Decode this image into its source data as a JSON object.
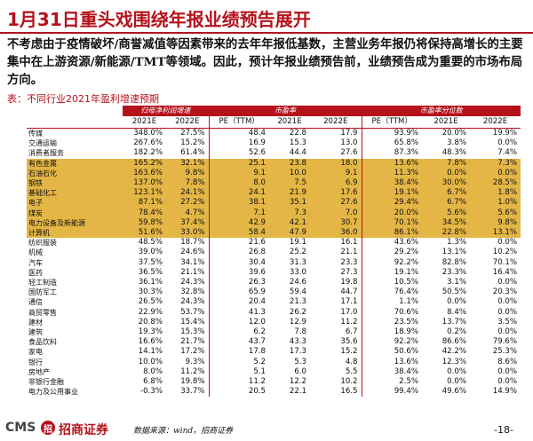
{
  "title": "1月31日重头戏围绕年报业绩预告展开",
  "paragraph": "不考虑由于疫情破坏/商誉减值等因素带来的去年年报低基数，主营业务年报仍将保持高增长的主要集中在上游资源/新能源/TMT等领域。因此，预计年报业绩预告前，业绩预告成为重要的市场布局方向。",
  "caption": "表：不同行业2021年盈利增速预期",
  "table": {
    "group_headers": [
      "",
      "归母净利润增速",
      "市盈率",
      "市盈率分位数"
    ],
    "sub_headers": [
      "",
      "2021E",
      "2022E",
      "PE（TTM）",
      "2021E",
      "2022E",
      "PE（TTM）",
      "2021E",
      "2022E"
    ],
    "rows": [
      {
        "name": "传媒",
        "v": [
          "348.0%",
          "27.5%",
          "48.4",
          "22.8",
          "17.9",
          "93.9%",
          "20.0%",
          "19.9%"
        ],
        "hl": "none"
      },
      {
        "name": "交通运输",
        "v": [
          "267.6%",
          "15.2%",
          "16.9",
          "15.3",
          "13.0",
          "65.8%",
          "3.8%",
          "0.0%"
        ],
        "hl": "none"
      },
      {
        "name": "消费者服务",
        "v": [
          "182.2%",
          "61.4%",
          "52.6",
          "44.4",
          "27.6",
          "87.3%",
          "48.3%",
          "7.4%"
        ],
        "hl": "none"
      },
      {
        "name": "有色金属",
        "v": [
          "165.2%",
          "32.1%",
          "25.1",
          "23.8",
          "18.0",
          "13.6%",
          "7.8%",
          "7.3%"
        ],
        "hl": "hl"
      },
      {
        "name": "石油石化",
        "v": [
          "163.6%",
          "9.8%",
          "9.1",
          "10.0",
          "9.1",
          "11.3%",
          "0.0%",
          "0.0%"
        ],
        "hl": "hl"
      },
      {
        "name": "钢铁",
        "v": [
          "137.0%",
          "7.8%",
          "8.0",
          "7.5",
          "6.9",
          "38.4%",
          "30.0%",
          "28.5%"
        ],
        "hl": "hl"
      },
      {
        "name": "基础化工",
        "v": [
          "123.1%",
          "24.1%",
          "24.1",
          "21.9",
          "17.6",
          "19.1%",
          "6.7%",
          "1.8%"
        ],
        "hl": "hl"
      },
      {
        "name": "电子",
        "v": [
          "87.1%",
          "27.2%",
          "38.1",
          "35.1",
          "27.6",
          "29.4%",
          "6.7%",
          "1.0%"
        ],
        "hl": "hl"
      },
      {
        "name": "煤炭",
        "v": [
          "78.4%",
          "4.7%",
          "7.1",
          "7.3",
          "7.0",
          "20.0%",
          "5.6%",
          "5.6%"
        ],
        "hl": "hl"
      },
      {
        "name": "电力设备及新能源",
        "v": [
          "59.8%",
          "37.4%",
          "42.9",
          "42.1",
          "30.7",
          "70.1%",
          "34.5%",
          "9.8%"
        ],
        "hl": "hl"
      },
      {
        "name": "计算机",
        "v": [
          "51.6%",
          "33.0%",
          "58.4",
          "47.9",
          "36.0",
          "86.1%",
          "22.8%",
          "13.1%"
        ],
        "hl": "hl"
      },
      {
        "name": "纺织服装",
        "v": [
          "48.5%",
          "18.7%",
          "21.6",
          "19.1",
          "16.1",
          "43.6%",
          "1.3%",
          "0.0%"
        ],
        "hl": "none"
      },
      {
        "name": "机械",
        "v": [
          "39.0%",
          "24.6%",
          "26.8",
          "25.2",
          "21.1",
          "29.2%",
          "13.1%",
          "10.2%"
        ],
        "hl": "none"
      },
      {
        "name": "汽车",
        "v": [
          "37.5%",
          "34.1%",
          "30.4",
          "31.3",
          "23.3",
          "92.2%",
          "82.8%",
          "70.1%"
        ],
        "hl": "none"
      },
      {
        "name": "医药",
        "v": [
          "36.5%",
          "21.1%",
          "39.6",
          "33.0",
          "27.3",
          "19.1%",
          "23.3%",
          "16.4%"
        ],
        "hl": "none"
      },
      {
        "name": "轻工制造",
        "v": [
          "36.1%",
          "24.3%",
          "26.3",
          "24.6",
          "19.8",
          "10.5%",
          "3.1%",
          "0.0%"
        ],
        "hl": "none"
      },
      {
        "name": "国防军工",
        "v": [
          "30.3%",
          "32.8%",
          "65.9",
          "59.4",
          "44.7",
          "76.4%",
          "50.5%",
          "20.3%"
        ],
        "hl": "none"
      },
      {
        "name": "通信",
        "v": [
          "26.5%",
          "24.3%",
          "20.4",
          "21.3",
          "17.1",
          "1.1%",
          "0.0%",
          "0.0%"
        ],
        "hl": "none"
      },
      {
        "name": "商贸零售",
        "v": [
          "22.9%",
          "53.7%",
          "41.3",
          "26.2",
          "17.0",
          "70.6%",
          "8.4%",
          "0.0%"
        ],
        "hl": "none"
      },
      {
        "name": "建材",
        "v": [
          "20.8%",
          "15.4%",
          "12.0",
          "12.9",
          "11.2",
          "23.5%",
          "13.7%",
          "3.5%"
        ],
        "hl": "none"
      },
      {
        "name": "建筑",
        "v": [
          "19.3%",
          "15.3%",
          "6.2",
          "7.8",
          "6.7",
          "18.9%",
          "0.2%",
          "0.0%"
        ],
        "hl": "none"
      },
      {
        "name": "食品饮料",
        "v": [
          "16.6%",
          "21.7%",
          "43.7",
          "43.3",
          "35.6",
          "92.2%",
          "86.6%",
          "79.6%"
        ],
        "hl": "none"
      },
      {
        "name": "家电",
        "v": [
          "14.1%",
          "17.2%",
          "17.8",
          "17.3",
          "15.2",
          "50.6%",
          "42.2%",
          "25.3%"
        ],
        "hl": "none"
      },
      {
        "name": "银行",
        "v": [
          "10.0%",
          "9.3%",
          "5.2",
          "5.3",
          "4.8",
          "13.6%",
          "12.3%",
          "8.6%"
        ],
        "hl": "none"
      },
      {
        "name": "房地产",
        "v": [
          "8.0%",
          "11.2%",
          "5.1",
          "6.0",
          "5.5",
          "38.4%",
          "0.0%",
          "0.0%"
        ],
        "hl": "none"
      },
      {
        "name": "非银行金融",
        "v": [
          "6.8%",
          "19.8%",
          "11.2",
          "12.2",
          "10.2",
          "2.5%",
          "0.0%",
          "0.0%"
        ],
        "hl": "none"
      },
      {
        "name": "电力及公用事业",
        "v": [
          "-0.3%",
          "33.7%",
          "20.5",
          "22.1",
          "16.5",
          "99.4%",
          "49.6%",
          "14.9%"
        ],
        "hl": "none"
      }
    ]
  },
  "footer": {
    "cms": "CMS",
    "logo_glyph": "招",
    "brand": "招商证券",
    "source": "数据来源：wind，招商证券",
    "page": "-18-"
  }
}
